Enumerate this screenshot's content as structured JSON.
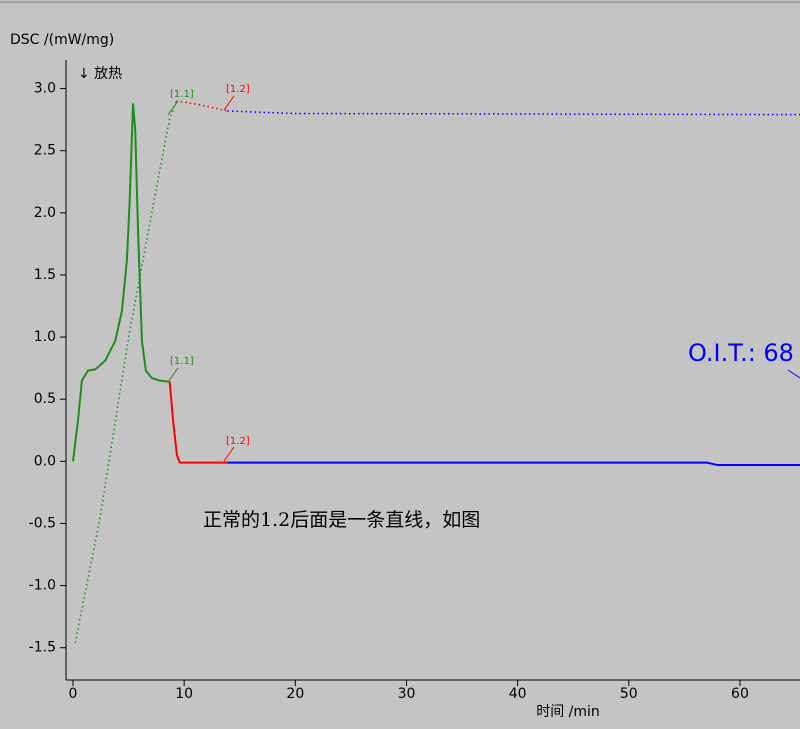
{
  "chart_data": {
    "type": "line",
    "y_label": "DSC /(mW/mg)",
    "x_label": "时间 /min",
    "xlim": [
      -0.63,
      65.4
    ],
    "ylim": [
      -1.76,
      3.23
    ],
    "xticks": [
      0,
      10,
      20,
      30,
      40,
      50,
      60
    ],
    "yticks": [
      -1.5,
      {
        "value": -1,
        "label": "-1.0"
      },
      -0.5,
      {
        "value": 0,
        "label": "0.0"
      },
      0.5,
      {
        "value": 1,
        "label": "1.0"
      },
      1.5,
      {
        "value": 2,
        "label": "2.0"
      },
      2.5,
      {
        "value": 3,
        "label": "3.0"
      }
    ],
    "series": [
      {
        "color": "#1e8c1e",
        "style": "solid",
        "x": [
          0,
          0.45,
          0.8,
          1.35,
          2,
          2.9,
          3.8,
          4.4,
          4.85,
          5.1,
          5.4,
          5.6,
          5.85,
          6.2,
          6.55,
          7.1,
          7.8,
          8.7
        ],
        "values": [
          0,
          0.33,
          0.65,
          0.73,
          0.74,
          0.81,
          0.97,
          1.21,
          1.62,
          2.1,
          2.88,
          2.66,
          1.86,
          0.97,
          0.73,
          0.67,
          0.65,
          0.64
        ]
      },
      {
        "color": "#ff0000",
        "style": "solid",
        "x": [
          8.7,
          9.0,
          9.35,
          9.6,
          13.9
        ],
        "values": [
          0.64,
          0.33,
          0.05,
          -0.01,
          -0.01
        ]
      },
      {
        "color": "#0000ff",
        "style": "solid",
        "x": [
          13.9,
          30,
          57,
          58,
          65.4
        ],
        "values": [
          -0.01,
          -0.01,
          -0.01,
          -0.03,
          -0.03
        ]
      },
      {
        "color": "#1e8c1e",
        "style": "dotted",
        "x": [
          0.2,
          2.4,
          5.1,
          7.8,
          8.7,
          9.3
        ],
        "values": [
          -1.46,
          -0.47,
          1.05,
          2.34,
          2.76,
          2.9
        ]
      },
      {
        "color": "#ff0000",
        "style": "dotted",
        "x": [
          9.3,
          11.4,
          13.9
        ],
        "values": [
          2.9,
          2.87,
          2.82
        ]
      },
      {
        "color": "#0000ff",
        "style": "dotted",
        "x": [
          13.9,
          19.5,
          65.4
        ],
        "values": [
          2.82,
          2.8,
          2.79
        ]
      }
    ],
    "annotations": [
      {
        "text": "↓ 放热",
        "color": "#000000"
      },
      {
        "text": "[1.1]",
        "color": "#1e8c1e"
      },
      {
        "text": "[1.2]",
        "color": "#ff0000"
      },
      {
        "text": "[1.1]",
        "color": "#1e8c1e"
      },
      {
        "text": "[1.2]",
        "color": "#ff0000"
      },
      {
        "text": "O.I.T.: 68",
        "color": "#0000ff"
      },
      {
        "text": "正常的1.2后面是一条直线，如图",
        "color": "#000000"
      }
    ]
  }
}
